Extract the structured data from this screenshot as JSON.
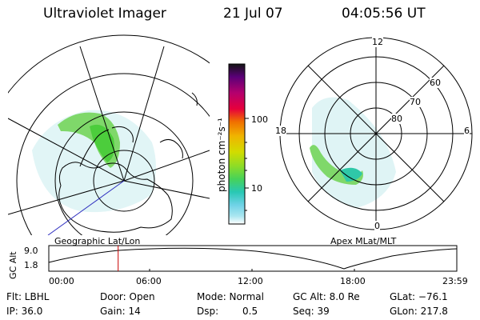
{
  "header": {
    "instrument": "Ultraviolet Imager",
    "date": "21 Jul 07",
    "time": "04:05:56 UT"
  },
  "colorbar": {
    "unit_label": "photon cm⁻²s⁻¹",
    "tick_labels": [
      "100",
      "10"
    ],
    "colors": [
      "#141414",
      "#5a0078",
      "#b4006e",
      "#e6003c",
      "#f06e00",
      "#f0b400",
      "#d2dc00",
      "#8cdc28",
      "#46d25a",
      "#28c8b4",
      "#6ed2e6",
      "#aae6f0",
      "#ffffff"
    ]
  },
  "left_map": {
    "caption": "Geographic Lat/Lon"
  },
  "right_map": {
    "caption": "Apex MLat/MLT",
    "mlt_labels": [
      "12",
      "18",
      "6",
      "0"
    ],
    "lat_labels": [
      "60",
      "70",
      "80"
    ]
  },
  "altitude_plot": {
    "ylabel": "GC Alt",
    "y_ticks": [
      "9.0",
      "1.8"
    ],
    "x_ticks": [
      "00:00",
      "06:00",
      "12:00",
      "18:00",
      "23:59"
    ],
    "current_time_fraction": 0.17,
    "marker_color": "#c80000"
  },
  "info": {
    "flt": "Flt: LBHL",
    "ip": "IP: 36.0",
    "door": "Door: Open",
    "gain": "Gain: 14",
    "mode": "Mode: Normal",
    "dsp_label": "Dsp:",
    "dsp_value": "0.5",
    "gc_alt": "GC Alt: 8.0 Re",
    "seq": "Seq: 39",
    "glat": "GLat: −76.1",
    "glon": "GLon: 217.8"
  }
}
